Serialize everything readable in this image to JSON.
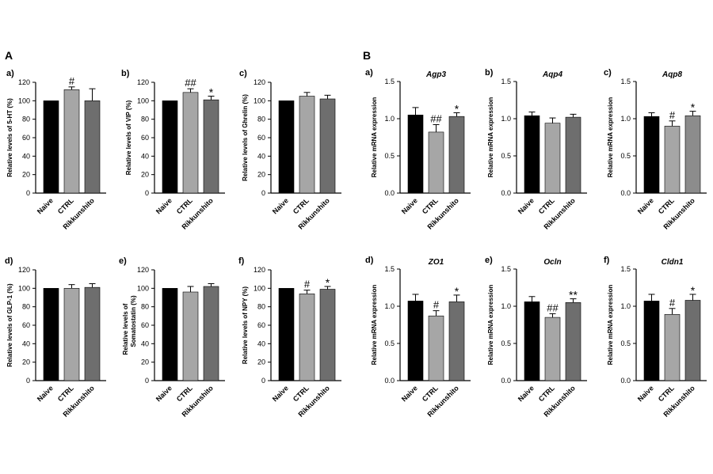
{
  "figure": {
    "panel_a_label": "A",
    "panel_b_label": "B",
    "bar_colors": [
      "#000000",
      "#a6a6a6",
      "#6e6e6e"
    ],
    "bar_colors_alt": {
      "Aqp8": [
        "#000000",
        "#a6a6a6",
        "#8c8c8c"
      ]
    }
  },
  "chart_data": [
    {
      "id": "A-a",
      "type": "bar",
      "label": "a)",
      "title": "",
      "ylabel": "Relative levels of 5-HT (%)",
      "ylim": [
        0,
        120
      ],
      "yticks": [
        "0",
        "20",
        "40",
        "60",
        "80",
        "100",
        "120"
      ],
      "categories": [
        "Naive",
        "CTRL",
        "Rikkunshito"
      ],
      "values": [
        100,
        112,
        100
      ],
      "errors": [
        0,
        3,
        13
      ],
      "annotations": [
        "",
        "#",
        ""
      ]
    },
    {
      "id": "A-b",
      "type": "bar",
      "label": "b)",
      "title": "",
      "ylabel": "Relative levels of VIP (%)",
      "ylim": [
        0,
        120
      ],
      "yticks": [
        "0",
        "20",
        "40",
        "60",
        "80",
        "100",
        "120"
      ],
      "categories": [
        "Naive",
        "CTRL",
        "Rikkunshito"
      ],
      "values": [
        100,
        109,
        101
      ],
      "errors": [
        0,
        4,
        4
      ],
      "annotations": [
        "",
        "##",
        "*"
      ]
    },
    {
      "id": "A-c",
      "type": "bar",
      "label": "c)",
      "title": "",
      "ylabel": "Relative levels of Ghrelin (%)",
      "ylim": [
        0,
        120
      ],
      "yticks": [
        "0",
        "20",
        "40",
        "60",
        "80",
        "100",
        "120"
      ],
      "categories": [
        "Naive",
        "CTRL",
        "Rikkunshito"
      ],
      "values": [
        100,
        105,
        102
      ],
      "errors": [
        0,
        4,
        4
      ],
      "annotations": [
        "",
        "",
        ""
      ]
    },
    {
      "id": "A-d",
      "type": "bar",
      "label": "d)",
      "title": "",
      "ylabel": "Relative levels of GLP-1 (%)",
      "ylim": [
        0,
        120
      ],
      "yticks": [
        "0",
        "20",
        "40",
        "60",
        "80",
        "100",
        "120"
      ],
      "categories": [
        "Naive",
        "CTRL",
        "Rikkunshito"
      ],
      "values": [
        100,
        100,
        101
      ],
      "errors": [
        0,
        4,
        4
      ],
      "annotations": [
        "",
        "",
        ""
      ]
    },
    {
      "id": "A-e",
      "type": "bar",
      "label": "e)",
      "title": "",
      "ylabel": "Relative levels of Somatostatin (%)",
      "ylim": [
        0,
        120
      ],
      "yticks": [
        "0",
        "20",
        "40",
        "60",
        "80",
        "100",
        "120"
      ],
      "categories": [
        "Naive",
        "CTRL",
        "Rikkunshito"
      ],
      "values": [
        100,
        96,
        102
      ],
      "errors": [
        0,
        6,
        3
      ],
      "annotations": [
        "",
        "",
        ""
      ]
    },
    {
      "id": "A-f",
      "type": "bar",
      "label": "f)",
      "title": "",
      "ylabel": "Relative levels of NPY (%)",
      "ylim": [
        0,
        120
      ],
      "yticks": [
        "0",
        "20",
        "40",
        "60",
        "80",
        "100",
        "120"
      ],
      "categories": [
        "Naive",
        "CTRL",
        "Rikkunshito"
      ],
      "values": [
        100,
        94,
        99
      ],
      "errors": [
        0,
        4,
        3
      ],
      "annotations": [
        "",
        "#",
        "*"
      ]
    },
    {
      "id": "B-a",
      "type": "bar",
      "label": "a)",
      "title": "Agp3",
      "ylabel": "Relative mRNA expression",
      "ylim": [
        0,
        1.5
      ],
      "yticks": [
        "0.0",
        "0.5",
        "1.0",
        "1.5"
      ],
      "categories": [
        "Naive",
        "CTRL",
        "Rikkunshito"
      ],
      "values": [
        1.05,
        0.82,
        1.03
      ],
      "errors": [
        0.1,
        0.1,
        0.05
      ],
      "annotations": [
        "",
        "##",
        "*"
      ]
    },
    {
      "id": "B-b",
      "type": "bar",
      "label": "b)",
      "title": "Aqp4",
      "ylabel": "Relative mRNA expression",
      "ylim": [
        0,
        1.5
      ],
      "yticks": [
        "0.0",
        "0.5",
        "1.0",
        "1.5"
      ],
      "categories": [
        "Naive",
        "CTRL",
        "Rikkunshito"
      ],
      "values": [
        1.04,
        0.94,
        1.02
      ],
      "errors": [
        0.05,
        0.07,
        0.04
      ],
      "annotations": [
        "",
        "",
        ""
      ]
    },
    {
      "id": "B-c",
      "type": "bar",
      "label": "c)",
      "title": "Aqp8",
      "ylabel": "Relative mRNA expression",
      "ylim": [
        0,
        1.5
      ],
      "yticks": [
        "0.0",
        "0.5",
        "1.0",
        "1.5"
      ],
      "categories": [
        "Naive",
        "CTRL",
        "Rikkunshito"
      ],
      "values": [
        1.03,
        0.9,
        1.04
      ],
      "errors": [
        0.05,
        0.07,
        0.06
      ],
      "annotations": [
        "",
        "#",
        "*"
      ]
    },
    {
      "id": "B-d",
      "type": "bar",
      "label": "d)",
      "title": "ZO1",
      "ylabel": "Relative mRNA expression",
      "ylim": [
        0,
        1.5
      ],
      "yticks": [
        "0.0",
        "0.5",
        "1.0",
        "1.5"
      ],
      "categories": [
        "Naive",
        "CTRL",
        "Rikkunshito"
      ],
      "values": [
        1.07,
        0.87,
        1.06
      ],
      "errors": [
        0.09,
        0.07,
        0.09
      ],
      "annotations": [
        "",
        "#",
        "*"
      ]
    },
    {
      "id": "B-e",
      "type": "bar",
      "label": "e)",
      "title": "Ocln",
      "ylabel": "Relative mRNA expression",
      "ylim": [
        0,
        1.5
      ],
      "yticks": [
        "0.0",
        "0.5",
        "1.0",
        "1.5"
      ],
      "categories": [
        "Naive",
        "CTRL",
        "Rikkunshito"
      ],
      "values": [
        1.06,
        0.85,
        1.05
      ],
      "errors": [
        0.07,
        0.05,
        0.05
      ],
      "annotations": [
        "",
        "##",
        "**"
      ]
    },
    {
      "id": "B-f",
      "type": "bar",
      "label": "f)",
      "title": "Cldn1",
      "ylabel": "Relative mRNA expression",
      "ylim": [
        0,
        1.5
      ],
      "yticks": [
        "0.0",
        "0.5",
        "1.0",
        "1.5"
      ],
      "categories": [
        "Naive",
        "CTRL",
        "Rikkunshito"
      ],
      "values": [
        1.07,
        0.89,
        1.08
      ],
      "errors": [
        0.09,
        0.08,
        0.08
      ],
      "annotations": [
        "",
        "#",
        "*"
      ]
    }
  ]
}
